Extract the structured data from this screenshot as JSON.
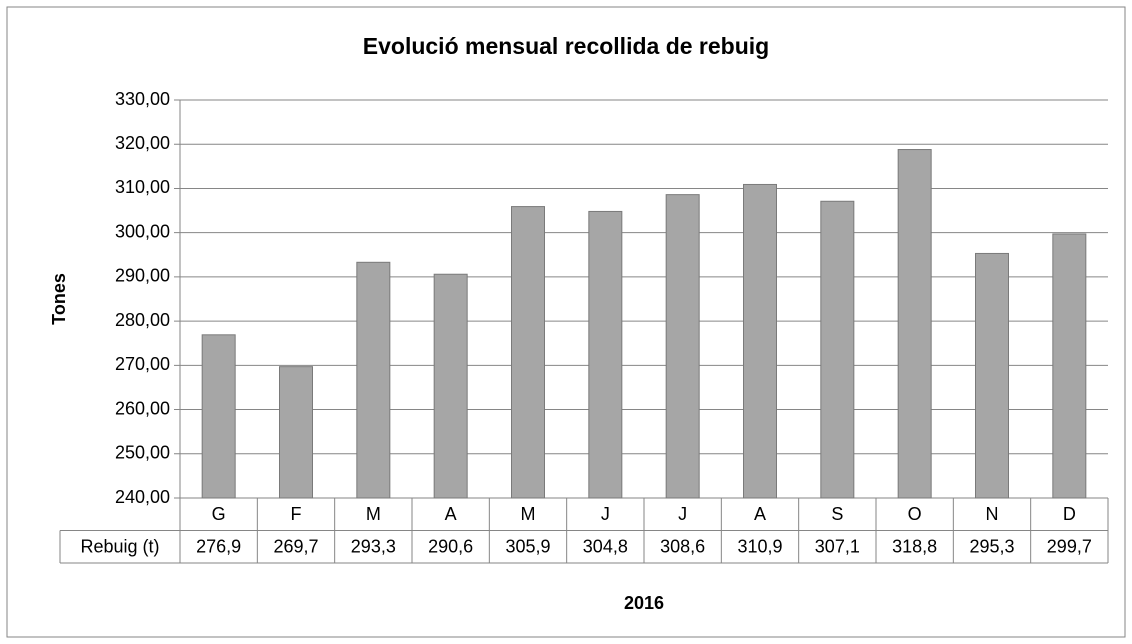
{
  "chart_data": {
    "type": "bar",
    "title": "Evolució mensual recollida de rebuig",
    "x_label": "2016",
    "y_label": "Tones",
    "categories": [
      "G",
      "F",
      "M",
      "A",
      "M",
      "J",
      "J",
      "A",
      "S",
      "O",
      "N",
      "D"
    ],
    "series": [
      {
        "name": "Rebuig (t)",
        "color": "#a6a6a6",
        "values": [
          276.9,
          269.7,
          293.3,
          290.6,
          305.9,
          304.8,
          308.6,
          310.9,
          307.1,
          318.8,
          295.3,
          299.7
        ],
        "value_labels": [
          "276,9",
          "269,7",
          "293,3",
          "290,6",
          "305,9",
          "304,8",
          "308,6",
          "310,9",
          "307,1",
          "318,8",
          "295,3",
          "299,7"
        ]
      }
    ],
    "ylim": [
      240,
      330
    ],
    "yticks": [
      {
        "value": 240,
        "label": "240,00"
      },
      {
        "value": 250,
        "label": "250,00"
      },
      {
        "value": 260,
        "label": "260,00"
      },
      {
        "value": 270,
        "label": "270,00"
      },
      {
        "value": 280,
        "label": "280,00"
      },
      {
        "value": 290,
        "label": "290,00"
      },
      {
        "value": 300,
        "label": "300,00"
      },
      {
        "value": 310,
        "label": "310,00"
      },
      {
        "value": 320,
        "label": "320,00"
      },
      {
        "value": 330,
        "label": "330,00"
      }
    ],
    "grid": true
  }
}
